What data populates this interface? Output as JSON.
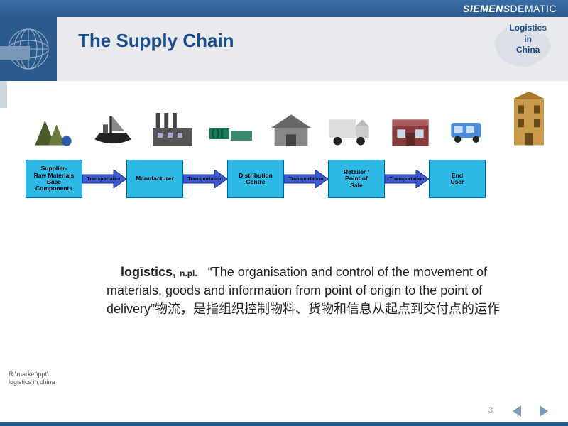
{
  "brand": {
    "bold": "SIEMENS",
    "light": "DEMATIC"
  },
  "title": "The Supply Chain",
  "corner": {
    "l1": "Logistics",
    "l2": "in",
    "l3": "China"
  },
  "flow": {
    "boxes": [
      "Supplier-\nRaw Materials\nBase\nComponents",
      "Manufacturer",
      "Distribution\nCentre",
      "Retailer /\nPoint of\nSale",
      "End\nUser"
    ],
    "arrow_label": "Transportation",
    "box_fill": "#2eb8e6",
    "box_border": "#0066a3",
    "arrow_fill": "#3b5bd6",
    "arrow_stroke": "#1a2f80"
  },
  "definition": {
    "headword": "logīstics,",
    "pos": "n.pl.",
    "body_en": "“The organisation and control of the movement of materials, goods and information from point of origin to the point of delivery”",
    "body_zh": "物流，是指组织控制物料、货物和信息从起点到交付点的运作"
  },
  "footer_path": "R:\\market\\ppt\\\nlogistics in china",
  "page_number": "3",
  "colors": {
    "brand_bar": "#2d5a8c",
    "header_bg": "#e8eaed",
    "title": "#1a4d8c",
    "watermark": "#c8d0da"
  },
  "icons": [
    "supplier-icon",
    "ship-icon",
    "factory-icon",
    "containers-icon",
    "warehouse-icon",
    "truck-icon",
    "store-icon",
    "van-icon",
    "building-icon"
  ]
}
